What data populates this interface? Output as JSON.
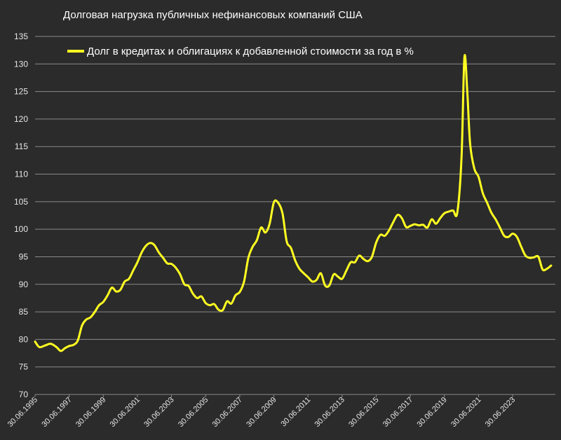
{
  "chart_data": {
    "type": "line",
    "title": "Долговая нагрузка публичных нефинансовых компаний США",
    "xlabel": "",
    "ylabel": "",
    "ylim": [
      70,
      135
    ],
    "yticks": [
      70,
      75,
      80,
      85,
      90,
      95,
      100,
      105,
      110,
      115,
      120,
      125,
      130,
      135
    ],
    "xlim": [
      "1995-06-30",
      "2025-12-31"
    ],
    "xtick_labels": [
      "30.06.1995",
      "30.06.1997",
      "30.06.1999",
      "30.06.2001",
      "30.06.2003",
      "30.06.2005",
      "30.06.2007",
      "30.06.2009",
      "30.06.2011",
      "30.06.2013",
      "30.06.2015",
      "30.06.2017",
      "30.06.2019",
      "30.06.2021",
      "30.06.2023"
    ],
    "grid": "horizontal",
    "legend_position": "top-left",
    "colors": {
      "background": "#2b2b2b",
      "line": "#ffff22",
      "grid": "#8a8a8a",
      "text": "#ffffff"
    },
    "series": [
      {
        "name": "Долг в кредитах и облигациях к добавленной стоимости за год в %",
        "color": "#ffff22",
        "points": [
          [
            "1995-06-30",
            79.6
          ],
          [
            "1995-09-30",
            78.6
          ],
          [
            "1996-01-31",
            78.9
          ],
          [
            "1996-05-31",
            79.2
          ],
          [
            "1996-09-30",
            78.6
          ],
          [
            "1996-12-31",
            77.9
          ],
          [
            "1997-03-31",
            78.4
          ],
          [
            "1997-06-30",
            78.8
          ],
          [
            "1997-09-30",
            79.0
          ],
          [
            "1997-12-31",
            79.8
          ],
          [
            "1998-03-31",
            82.5
          ],
          [
            "1998-06-30",
            83.6
          ],
          [
            "1998-09-30",
            84.0
          ],
          [
            "1998-12-31",
            85.0
          ],
          [
            "1999-03-31",
            86.2
          ],
          [
            "1999-06-30",
            86.8
          ],
          [
            "1999-09-30",
            88.0
          ],
          [
            "1999-12-31",
            89.4
          ],
          [
            "2000-03-31",
            88.7
          ],
          [
            "2000-06-30",
            89.0
          ],
          [
            "2000-09-30",
            90.5
          ],
          [
            "2000-12-31",
            91.0
          ],
          [
            "2001-03-31",
            92.5
          ],
          [
            "2001-06-30",
            94.0
          ],
          [
            "2001-09-30",
            95.8
          ],
          [
            "2001-12-31",
            97.0
          ],
          [
            "2002-03-31",
            97.5
          ],
          [
            "2002-06-30",
            97.1
          ],
          [
            "2002-09-30",
            95.8
          ],
          [
            "2002-12-31",
            94.8
          ],
          [
            "2003-03-31",
            93.8
          ],
          [
            "2003-06-30",
            93.7
          ],
          [
            "2003-09-30",
            93.0
          ],
          [
            "2003-12-31",
            91.8
          ],
          [
            "2004-03-31",
            90.0
          ],
          [
            "2004-06-30",
            89.7
          ],
          [
            "2004-09-30",
            88.3
          ],
          [
            "2004-12-31",
            87.5
          ],
          [
            "2005-03-31",
            87.8
          ],
          [
            "2005-06-30",
            86.6
          ],
          [
            "2005-09-30",
            86.2
          ],
          [
            "2005-12-31",
            86.4
          ],
          [
            "2006-03-31",
            85.4
          ],
          [
            "2006-06-30",
            85.3
          ],
          [
            "2006-09-30",
            86.9
          ],
          [
            "2006-12-31",
            86.5
          ],
          [
            "2007-03-31",
            88.0
          ],
          [
            "2007-06-30",
            88.6
          ],
          [
            "2007-09-30",
            90.5
          ],
          [
            "2007-12-31",
            94.8
          ],
          [
            "2008-03-31",
            96.8
          ],
          [
            "2008-06-30",
            98.0
          ],
          [
            "2008-09-30",
            100.3
          ],
          [
            "2008-12-31",
            99.4
          ],
          [
            "2009-03-31",
            101.0
          ],
          [
            "2009-06-30",
            104.9
          ],
          [
            "2009-09-30",
            104.8
          ],
          [
            "2009-12-31",
            102.9
          ],
          [
            "2010-03-31",
            97.8
          ],
          [
            "2010-06-30",
            96.6
          ],
          [
            "2010-09-30",
            94.3
          ],
          [
            "2010-12-31",
            92.8
          ],
          [
            "2011-03-31",
            92.0
          ],
          [
            "2011-06-30",
            91.3
          ],
          [
            "2011-09-30",
            90.5
          ],
          [
            "2011-12-31",
            90.8
          ],
          [
            "2012-03-31",
            92.0
          ],
          [
            "2012-06-30",
            89.8
          ],
          [
            "2012-09-30",
            89.8
          ],
          [
            "2012-12-31",
            91.8
          ],
          [
            "2013-03-31",
            91.4
          ],
          [
            "2013-06-30",
            91.0
          ],
          [
            "2013-09-30",
            92.5
          ],
          [
            "2013-12-31",
            94.0
          ],
          [
            "2014-03-31",
            94.0
          ],
          [
            "2014-06-30",
            95.2
          ],
          [
            "2014-09-30",
            94.6
          ],
          [
            "2014-12-31",
            94.2
          ],
          [
            "2015-03-31",
            95.0
          ],
          [
            "2015-06-30",
            97.6
          ],
          [
            "2015-09-30",
            99.0
          ],
          [
            "2015-12-31",
            98.8
          ],
          [
            "2016-03-31",
            99.8
          ],
          [
            "2016-06-30",
            101.3
          ],
          [
            "2016-09-30",
            102.6
          ],
          [
            "2016-12-31",
            102.0
          ],
          [
            "2017-03-31",
            100.4
          ],
          [
            "2017-06-30",
            100.6
          ],
          [
            "2017-09-30",
            100.9
          ],
          [
            "2017-12-31",
            100.7
          ],
          [
            "2018-03-31",
            100.8
          ],
          [
            "2018-06-30",
            100.3
          ],
          [
            "2018-09-30",
            101.8
          ],
          [
            "2018-12-31",
            101.0
          ],
          [
            "2019-03-31",
            102.0
          ],
          [
            "2019-06-30",
            102.9
          ],
          [
            "2019-09-30",
            103.2
          ],
          [
            "2019-12-31",
            103.4
          ],
          [
            "2020-03-31",
            103.0
          ],
          [
            "2020-06-30",
            113.0
          ],
          [
            "2020-08-31",
            131.2
          ],
          [
            "2020-10-31",
            125.0
          ],
          [
            "2020-12-31",
            115.5
          ],
          [
            "2021-03-31",
            111.0
          ],
          [
            "2021-06-30",
            109.5
          ],
          [
            "2021-09-30",
            106.5
          ],
          [
            "2021-12-31",
            104.8
          ],
          [
            "2022-03-31",
            103.0
          ],
          [
            "2022-06-30",
            101.8
          ],
          [
            "2022-09-30",
            100.3
          ],
          [
            "2022-12-31",
            98.8
          ],
          [
            "2023-03-31",
            98.6
          ],
          [
            "2023-06-30",
            99.2
          ],
          [
            "2023-09-30",
            98.6
          ],
          [
            "2023-12-31",
            96.8
          ],
          [
            "2024-03-31",
            95.2
          ],
          [
            "2024-06-30",
            94.8
          ],
          [
            "2024-09-30",
            94.9
          ],
          [
            "2024-12-31",
            95.0
          ],
          [
            "2025-03-31",
            92.7
          ],
          [
            "2025-06-30",
            92.8
          ],
          [
            "2025-09-30",
            93.4
          ]
        ]
      }
    ]
  }
}
